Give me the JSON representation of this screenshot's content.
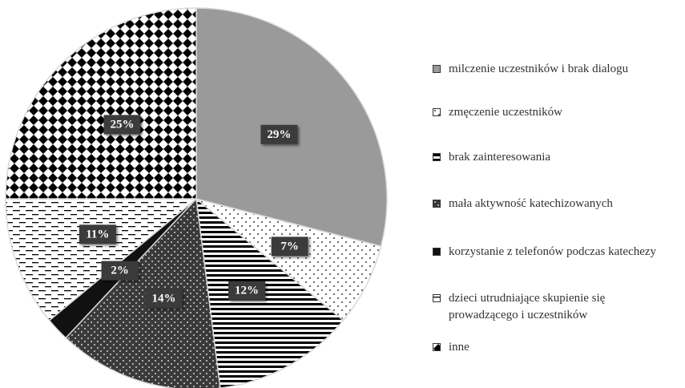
{
  "chart_data": {
    "type": "pie",
    "categories": [
      "milczenie uczestników i brak dialogu",
      "zmęczenie uczestników",
      "brak zainteresowania",
      "mała aktywność katechizowanych",
      "korzystanie z telefonów podczas katechezy",
      "dzieci utrudniające skupienie się prowadzącego i uczestników",
      "inne"
    ],
    "values": [
      29,
      7,
      12,
      14,
      2,
      11,
      25
    ],
    "value_labels": [
      "29%",
      "7%",
      "12%",
      "14%",
      "2%",
      "11%",
      "25%"
    ]
  }
}
